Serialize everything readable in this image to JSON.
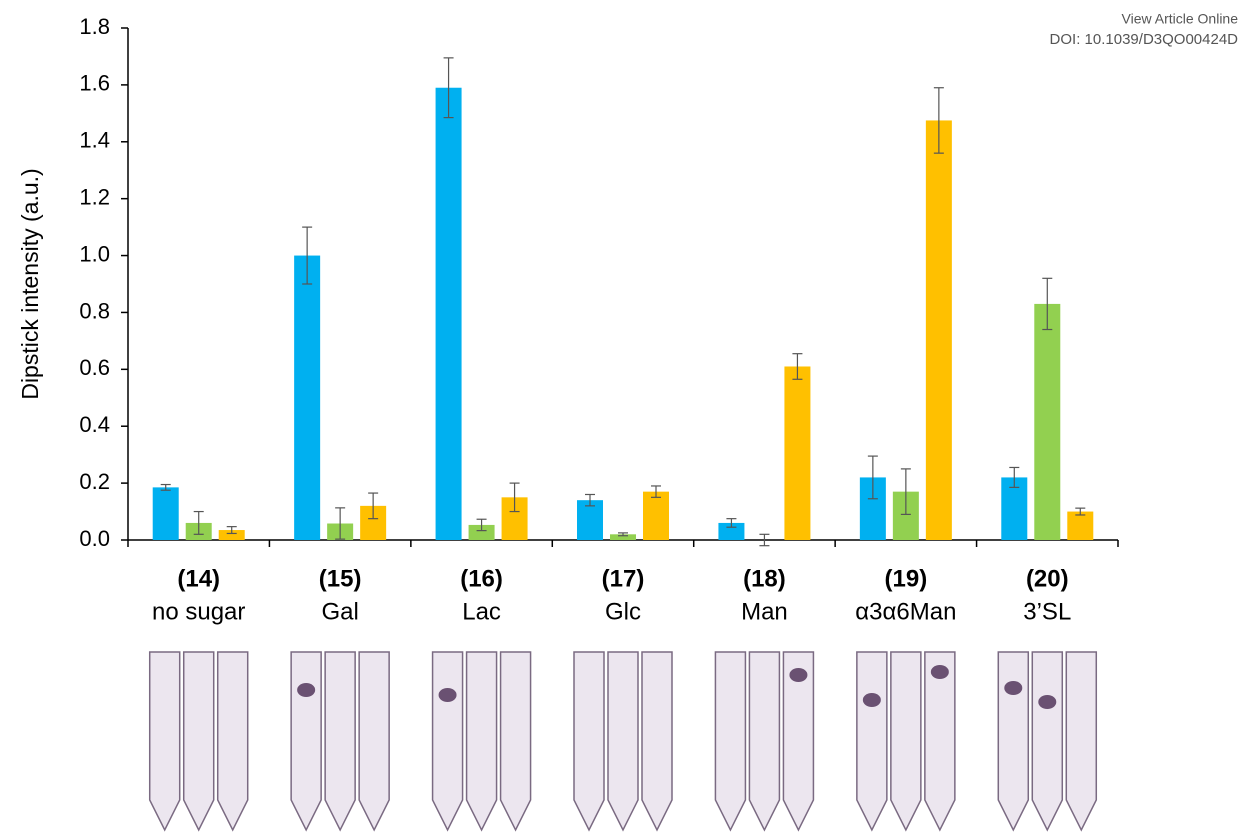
{
  "header": {
    "link": "View Article Online",
    "doi": "DOI: 10.1039/D3QO00424D"
  },
  "chart_data": {
    "type": "bar",
    "ylabel": "Dipstick intensity (a.u.)",
    "compounds": [
      "(14)",
      "(15)",
      "(16)",
      "(17)",
      "(18)",
      "(19)",
      "(20)"
    ],
    "categories": [
      "no sugar",
      "Gal",
      "Lac",
      "Glc",
      "Man",
      "α3α6Man",
      "3’SL"
    ],
    "series": [
      {
        "color": "#00b0f0",
        "values": [
          0.185,
          1.0,
          1.59,
          0.14,
          0.06,
          0.22,
          0.22
        ],
        "errors": [
          0.01,
          0.1,
          0.105,
          0.02,
          0.015,
          0.075,
          0.035
        ]
      },
      {
        "color": "#92d050",
        "values": [
          0.06,
          0.058,
          0.053,
          0.02,
          0.0,
          0.17,
          0.83
        ],
        "errors": [
          0.04,
          0.055,
          0.02,
          0.005,
          0.02,
          0.08,
          0.09
        ]
      },
      {
        "color": "#ffc000",
        "values": [
          0.035,
          0.12,
          0.15,
          0.17,
          0.61,
          1.475,
          0.1
        ],
        "errors": [
          0.012,
          0.045,
          0.05,
          0.02,
          0.045,
          0.115,
          0.012
        ]
      }
    ],
    "ylim": [
      0,
      1.8
    ],
    "yticks": [
      {
        "value": 0,
        "label": "0.0"
      },
      0.2,
      0.4,
      0.6,
      0.8,
      {
        "value": 1,
        "label": "1.0"
      },
      1.2,
      1.4,
      1.6,
      1.8
    ]
  }
}
